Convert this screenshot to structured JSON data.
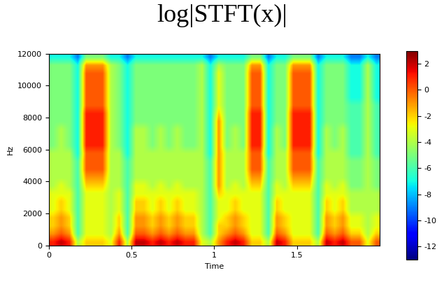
{
  "chart_data": {
    "type": "heatmap",
    "title": "log|STFT(x)|",
    "x_label": "Time",
    "y_label": "Hz",
    "xlim": [
      0,
      2.0
    ],
    "ylim": [
      0,
      12000
    ],
    "xticks": [
      0,
      0.5,
      1,
      1.5
    ],
    "yticks": [
      0,
      2000,
      4000,
      6000,
      8000,
      10000,
      12000
    ],
    "color": "jet",
    "grid": false,
    "color_range": [
      -13,
      3
    ],
    "colorbar_ticks": [
      2,
      0,
      -2,
      -4,
      -6,
      -8,
      -10,
      -12
    ],
    "cells": [
      [
        1,
        2,
        1,
        -4,
        -2,
        -2,
        -2,
        -3,
        1,
        -4,
        2,
        2,
        1,
        2,
        1,
        2,
        1,
        1,
        -3,
        -4,
        -1,
        1,
        2,
        1,
        -2,
        -2,
        -4,
        2,
        1,
        -2,
        -2,
        -2,
        -4,
        2,
        1,
        2,
        0,
        0,
        -3,
        0
      ],
      [
        -1,
        0,
        -1,
        -6,
        -3,
        -3,
        -3,
        -4,
        -1,
        -6,
        0,
        0,
        -1,
        0,
        -1,
        0,
        -1,
        -1,
        -4,
        -6,
        -2,
        -1,
        0,
        -1,
        -3,
        -3,
        -6,
        0,
        -1,
        -3,
        -3,
        -3,
        -6,
        0,
        -1,
        0,
        -2,
        -2,
        -4,
        -2
      ],
      [
        -2,
        -1,
        -2,
        -6,
        -3,
        -3,
        -3,
        -4,
        -2,
        -6,
        -1,
        -1,
        -2,
        -1,
        -2,
        -1,
        -2,
        -2,
        -4,
        -6,
        -2,
        -2,
        -1,
        -2,
        -3,
        -3,
        -6,
        -1,
        -2,
        -3,
        -3,
        -3,
        -6,
        -1,
        -2,
        -1,
        -3,
        -3,
        -4,
        -3
      ],
      [
        -2,
        -1,
        -2,
        -6,
        -3,
        -3,
        -3,
        -4,
        -2,
        -6,
        -1,
        -1,
        -2,
        -1,
        -2,
        -1,
        -2,
        -2,
        -4,
        -6,
        -3,
        -2,
        -1,
        -2,
        -3,
        -3,
        -6,
        -1,
        -2,
        -3,
        -3,
        -3,
        -6,
        -1,
        -2,
        -1,
        -3,
        -3,
        -4,
        -3
      ],
      [
        -3,
        -2,
        -3,
        -6,
        -3,
        -3,
        -3,
        -4,
        -3,
        -6,
        -2,
        -2,
        -3,
        -2,
        -3,
        -2,
        -3,
        -3,
        -4,
        -6,
        -3,
        -3,
        -2,
        -3,
        -3,
        -3,
        -6,
        -2,
        -3,
        -3,
        -3,
        -3,
        -6,
        -2,
        -3,
        -2,
        -4,
        -4,
        -4,
        -4
      ],
      [
        -3,
        -2,
        -3,
        -6,
        -3,
        -3,
        -3,
        -4,
        -3,
        -6,
        -2,
        -2,
        -3,
        -2,
        -3,
        -2,
        -3,
        -3,
        -4,
        -6,
        -3,
        -3,
        -2,
        -3,
        -3,
        -3,
        -6,
        -2,
        -3,
        -3,
        -3,
        -3,
        -6,
        -2,
        -3,
        -2,
        -4,
        -4,
        -4,
        -4
      ],
      [
        -3,
        -3,
        -3,
        -6,
        -3,
        -3,
        -3,
        -4,
        -3,
        -6,
        -3,
        -3,
        -3,
        -3,
        -3,
        -3,
        -3,
        -3,
        -4,
        -6,
        -2,
        -3,
        -3,
        -3,
        -3,
        -3,
        -6,
        -3,
        -3,
        -3,
        -3,
        -3,
        -6,
        -3,
        -3,
        -3,
        -4,
        -4,
        -4,
        -4
      ],
      [
        -4,
        -3,
        -4,
        -6,
        -2,
        -2,
        -2,
        -4,
        -4,
        -6,
        -3,
        -3,
        -4,
        -3,
        -4,
        -3,
        -4,
        -4,
        -4,
        -6,
        -1,
        -4,
        -3,
        -4,
        -2,
        -2,
        -6,
        -3,
        -4,
        -2,
        -2,
        -2,
        -6,
        -3,
        -4,
        -3,
        -5,
        -5,
        -4,
        -5
      ],
      [
        -4,
        -4,
        -4,
        -6,
        -1,
        -1,
        -1,
        -4,
        -4,
        -6,
        -4,
        -4,
        -4,
        -4,
        -4,
        -4,
        -4,
        -4,
        -4,
        -6,
        -1,
        -4,
        -4,
        -4,
        -1,
        -1,
        -6,
        -4,
        -4,
        -1,
        -1,
        -1,
        -6,
        -4,
        -4,
        -4,
        -5,
        -5,
        -4,
        -5
      ],
      [
        -4,
        -4,
        -4,
        -6,
        0,
        0,
        0,
        -4,
        -4,
        -6,
        -4,
        -4,
        -4,
        -4,
        -4,
        -4,
        -4,
        -4,
        -4,
        -6,
        -1,
        -4,
        -4,
        -4,
        0,
        0,
        -6,
        -4,
        -4,
        0,
        0,
        0,
        -6,
        -4,
        -4,
        -4,
        -5,
        -5,
        -4,
        -5
      ],
      [
        -4,
        -4,
        -4,
        -6,
        0,
        0,
        0,
        -4,
        -4,
        -6,
        -4,
        -4,
        -4,
        -4,
        -4,
        -4,
        -4,
        -4,
        -4,
        -6,
        -1,
        -4,
        -4,
        -4,
        0,
        0,
        -6,
        -4,
        -4,
        0,
        0,
        0,
        -6,
        -4,
        -4,
        -4,
        -5,
        -5,
        -4,
        -5
      ],
      [
        -4,
        -4,
        -4,
        -7,
        0,
        0,
        0,
        -4,
        -4,
        -7,
        -4,
        -4,
        -4,
        -4,
        -4,
        -4,
        -4,
        -4,
        -4,
        -7,
        -1,
        -4,
        -4,
        -4,
        0,
        0,
        -7,
        -4,
        -4,
        0,
        0,
        0,
        -7,
        -4,
        -4,
        -4,
        -6,
        -6,
        -4,
        -6
      ],
      [
        -5,
        -4,
        -5,
        -7,
        1,
        1,
        1,
        -4,
        -5,
        -7,
        -4,
        -4,
        -5,
        -4,
        -5,
        -4,
        -5,
        -5,
        -4,
        -7,
        -1,
        -5,
        -4,
        -5,
        1,
        1,
        -7,
        -4,
        -5,
        1,
        1,
        1,
        -7,
        -4,
        -5,
        -4,
        -6,
        -6,
        -4,
        -6
      ],
      [
        -5,
        -4,
        -5,
        -7,
        1,
        1,
        1,
        -4,
        -5,
        -7,
        -4,
        -4,
        -5,
        -4,
        -5,
        -4,
        -5,
        -5,
        -4,
        -7,
        -1,
        -5,
        -4,
        -5,
        1,
        1,
        -7,
        -4,
        -5,
        1,
        1,
        1,
        -7,
        -4,
        -5,
        -4,
        -6,
        -6,
        -4,
        -6
      ],
      [
        -5,
        -4,
        -5,
        -7,
        1,
        1,
        1,
        -4,
        -5,
        -7,
        -4,
        -4,
        -5,
        -4,
        -5,
        -4,
        -5,
        -5,
        -4,
        -7,
        -1,
        -5,
        -4,
        -5,
        1,
        1,
        -7,
        -4,
        -5,
        1,
        1,
        1,
        -7,
        -4,
        -5,
        -4,
        -6,
        -6,
        -4,
        -6
      ],
      [
        -5,
        -5,
        -5,
        -7,
        1,
        1,
        1,
        -4,
        -5,
        -7,
        -5,
        -5,
        -5,
        -5,
        -5,
        -5,
        -5,
        -5,
        -4,
        -7,
        -1,
        -5,
        -5,
        -5,
        1,
        1,
        -7,
        -5,
        -5,
        1,
        1,
        1,
        -7,
        -5,
        -5,
        -5,
        -6,
        -6,
        -4,
        -6
      ],
      [
        -5,
        -5,
        -5,
        -7,
        1,
        1,
        1,
        -4,
        -5,
        -7,
        -5,
        -5,
        -5,
        -5,
        -5,
        -5,
        -5,
        -5,
        -4,
        -7,
        -2,
        -5,
        -5,
        -5,
        1,
        1,
        -7,
        -5,
        -5,
        1,
        1,
        1,
        -7,
        -5,
        -5,
        -5,
        -6,
        -6,
        -4,
        -6
      ],
      [
        -5,
        -5,
        -5,
        -7,
        0,
        0,
        0,
        -4,
        -5,
        -7,
        -5,
        -5,
        -5,
        -5,
        -5,
        -5,
        -5,
        -5,
        -4,
        -7,
        -3,
        -5,
        -5,
        -5,
        0,
        0,
        -7,
        -5,
        -5,
        0,
        0,
        0,
        -7,
        -5,
        -5,
        -5,
        -6,
        -6,
        -4,
        -6
      ],
      [
        -5,
        -5,
        -5,
        -7,
        0,
        0,
        0,
        -4,
        -5,
        -7,
        -5,
        -5,
        -5,
        -5,
        -5,
        -5,
        -5,
        -5,
        -4,
        -7,
        -3,
        -5,
        -5,
        -5,
        0,
        0,
        -7,
        -5,
        -5,
        0,
        0,
        0,
        -7,
        -5,
        -5,
        -5,
        -7,
        -7,
        -4,
        -7
      ],
      [
        -5,
        -5,
        -5,
        -7,
        0,
        0,
        0,
        -4,
        -5,
        -7,
        -5,
        -5,
        -5,
        -5,
        -5,
        -5,
        -5,
        -5,
        -4,
        -7,
        -3,
        -5,
        -5,
        -5,
        0,
        0,
        -7,
        -5,
        -5,
        0,
        0,
        0,
        -7,
        -5,
        -5,
        -5,
        -7,
        -7,
        -4,
        -7
      ],
      [
        -5,
        -5,
        -5,
        -7,
        0,
        0,
        0,
        -4,
        -5,
        -7,
        -5,
        -5,
        -5,
        -5,
        -5,
        -5,
        -5,
        -5,
        -4,
        -7,
        -3,
        -5,
        -5,
        -5,
        0,
        0,
        -7,
        -5,
        -5,
        0,
        0,
        0,
        -7,
        -5,
        -5,
        -5,
        -7,
        -7,
        -4,
        -7
      ],
      [
        -5,
        -5,
        -5,
        -7,
        0,
        0,
        0,
        -4,
        -5,
        -7,
        -5,
        -5,
        -5,
        -5,
        -5,
        -5,
        -5,
        -5,
        -4,
        -7,
        -3,
        -5,
        -5,
        -5,
        0,
        0,
        -7,
        -5,
        -5,
        0,
        0,
        0,
        -7,
        -5,
        -5,
        -5,
        -7,
        -7,
        -4,
        -7
      ],
      [
        -5,
        -5,
        -5,
        -7,
        -1,
        -1,
        -1,
        -4,
        -5,
        -7,
        -5,
        -5,
        -5,
        -5,
        -5,
        -5,
        -5,
        -5,
        -4,
        -7,
        -4,
        -5,
        -5,
        -5,
        -1,
        -1,
        -7,
        -5,
        -5,
        -1,
        -1,
        -1,
        -7,
        -5,
        -5,
        -5,
        -7,
        -7,
        -4,
        -7
      ],
      [
        -7,
        -7,
        -7,
        -9,
        -5,
        -5,
        -5,
        -7,
        -7,
        -9,
        -7,
        -7,
        -7,
        -7,
        -7,
        -7,
        -7,
        -7,
        -7,
        -9,
        -7,
        -7,
        -7,
        -7,
        -5,
        -5,
        -9,
        -7,
        -7,
        -5,
        -5,
        -5,
        -9,
        -7,
        -7,
        -7,
        -9,
        -9,
        -7,
        -9
      ]
    ]
  }
}
